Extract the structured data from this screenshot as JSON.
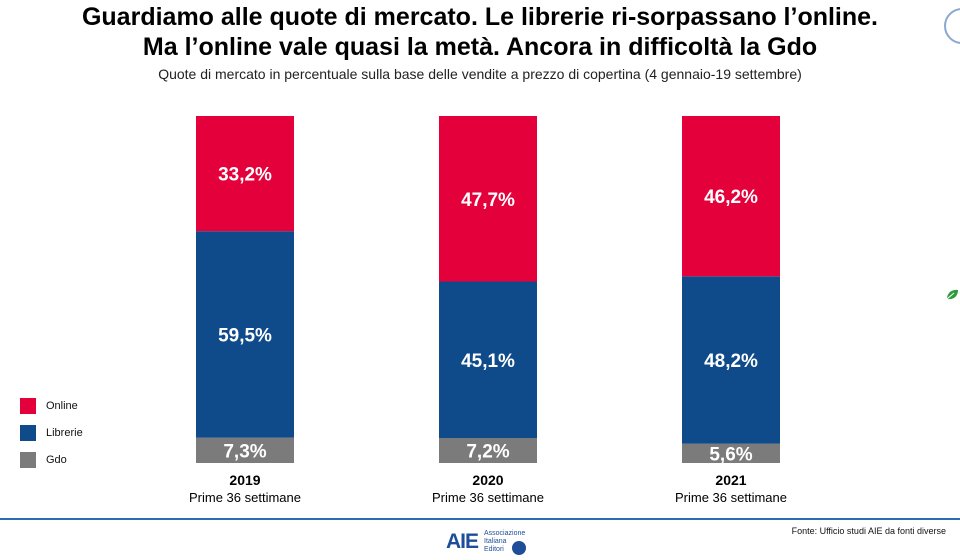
{
  "header": {
    "title_line1": "Guardiamo alle quote di mercato. Le librerie ri-sorpassano l’online.",
    "title_line2": "Ma l’online vale quasi la metà. Ancora in difficoltà la Gdo",
    "subtitle": "Quote di mercato in percentuale sulla base delle vendite a prezzo di copertina (4 gennaio-19 settembre)"
  },
  "chart_data": {
    "type": "bar",
    "stacked": true,
    "categories": [
      "2019",
      "2020",
      "2021"
    ],
    "category_sublabel": "Prime 36 settimane",
    "series": [
      {
        "name": "Gdo",
        "color": "#7b7b7b",
        "values": [
          7.3,
          7.2,
          5.6
        ],
        "labels": [
          "7,3%",
          "7,2%",
          "5,6%"
        ]
      },
      {
        "name": "Librerie",
        "color": "#0f4a8a",
        "values": [
          59.5,
          45.1,
          48.2
        ],
        "labels": [
          "59,5%",
          "45,1%",
          "48,2%"
        ]
      },
      {
        "name": "Online",
        "color": "#e4003b",
        "values": [
          33.2,
          47.7,
          46.2
        ],
        "labels": [
          "33,2%",
          "47,7%",
          "46,2%"
        ]
      }
    ],
    "ylim": [
      0,
      100
    ],
    "grid": false
  },
  "legend": {
    "items": [
      {
        "label": "Online",
        "color": "#e4003b"
      },
      {
        "label": "Librerie",
        "color": "#0f4a8a"
      },
      {
        "label": "Gdo",
        "color": "#7b7b7b"
      }
    ]
  },
  "footer": {
    "source": "Fonte: Ufficio studi AIE da fonti diverse",
    "logo_text": "AIE",
    "logo_name_line1": "Associazione",
    "logo_name_line2": "Italiana",
    "logo_name_line3": "Editori"
  },
  "icons": {
    "leaf": "leaf-icon"
  }
}
